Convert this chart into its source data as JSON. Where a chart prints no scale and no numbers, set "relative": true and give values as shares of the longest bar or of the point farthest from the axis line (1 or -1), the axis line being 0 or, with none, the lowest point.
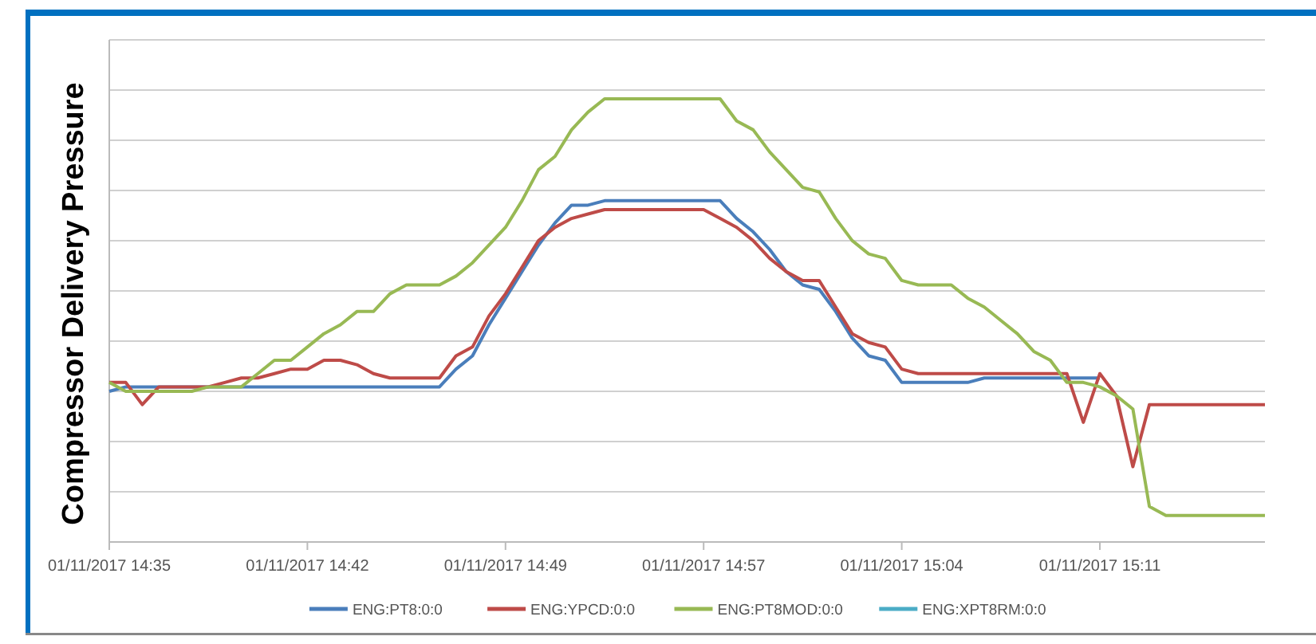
{
  "chart_data": {
    "type": "line",
    "ylabel": "Compressor Delivery Pressure",
    "relative": true,
    "grid": "y",
    "legend": "bottom",
    "categories": [
      "01/11/2017 14:35",
      null,
      null,
      null,
      null,
      null,
      null,
      null,
      null,
      null,
      null,
      null,
      "01/11/2017 14:42",
      null,
      null,
      null,
      null,
      null,
      null,
      null,
      null,
      null,
      null,
      null,
      "01/11/2017 14:49",
      null,
      null,
      null,
      null,
      null,
      null,
      null,
      null,
      null,
      null,
      null,
      "01/11/2017 14:57",
      null,
      null,
      null,
      null,
      null,
      null,
      null,
      null,
      null,
      null,
      null,
      "01/11/2017 15:04",
      null,
      null,
      null,
      null,
      null,
      null,
      null,
      null,
      null,
      null,
      null,
      "01/11/2017 15:11",
      null,
      null,
      null,
      null,
      null,
      null,
      null,
      null,
      null,
      null
    ],
    "series": [
      {
        "name": "ENG:PT8:0:0",
        "color": "#4a7ebb",
        "values": [
          0.34,
          0.35,
          0.35,
          0.35,
          0.35,
          0.35,
          0.35,
          0.35,
          0.35,
          0.35,
          0.35,
          0.35,
          0.35,
          0.35,
          0.35,
          0.35,
          0.35,
          0.35,
          0.35,
          0.35,
          0.35,
          0.39,
          0.42,
          0.49,
          0.55,
          0.61,
          0.67,
          0.72,
          0.76,
          0.76,
          0.77,
          0.77,
          0.77,
          0.77,
          0.77,
          0.77,
          0.77,
          0.77,
          0.73,
          0.7,
          0.66,
          0.61,
          0.58,
          0.57,
          0.52,
          0.46,
          0.42,
          0.41,
          0.36,
          0.36,
          0.36,
          0.36,
          0.36,
          0.37,
          0.37,
          0.37,
          0.37,
          0.37,
          0.37,
          0.37,
          0.37,
          null,
          null,
          null,
          null,
          null,
          null,
          null,
          null,
          null,
          null
        ]
      },
      {
        "name": "ENG:YPCD:0:0",
        "color": "#be4b48",
        "values": [
          0.36,
          0.36,
          0.31,
          0.35,
          0.35,
          0.35,
          0.35,
          0.36,
          0.37,
          0.37,
          0.38,
          0.39,
          0.39,
          0.41,
          0.41,
          0.4,
          0.38,
          0.37,
          0.37,
          0.37,
          0.37,
          0.42,
          0.44,
          0.51,
          0.56,
          0.62,
          0.68,
          0.71,
          0.73,
          0.74,
          0.75,
          0.75,
          0.75,
          0.75,
          0.75,
          0.75,
          0.75,
          0.73,
          0.71,
          0.68,
          0.64,
          0.61,
          0.59,
          0.59,
          0.53,
          0.47,
          0.45,
          0.44,
          0.39,
          0.38,
          0.38,
          0.38,
          0.38,
          0.38,
          0.38,
          0.38,
          0.38,
          0.38,
          0.38,
          0.27,
          0.38,
          0.33,
          0.17,
          0.31,
          0.31,
          0.31,
          0.31,
          0.31,
          0.31,
          0.31,
          0.31
        ]
      },
      {
        "name": "ENG:PT8MOD:0:0",
        "color": "#98b954",
        "values": [
          0.36,
          0.34,
          0.34,
          0.34,
          0.34,
          0.34,
          0.35,
          0.35,
          0.35,
          0.38,
          0.41,
          0.41,
          0.44,
          0.47,
          0.49,
          0.52,
          0.52,
          0.56,
          0.58,
          0.58,
          0.58,
          0.6,
          0.63,
          0.67,
          0.71,
          0.77,
          0.84,
          0.87,
          0.93,
          0.97,
          1,
          1,
          1,
          1,
          1,
          1,
          1,
          1,
          0.95,
          0.93,
          0.88,
          0.84,
          0.8,
          0.79,
          0.73,
          0.68,
          0.65,
          0.64,
          0.59,
          0.58,
          0.58,
          0.58,
          0.55,
          0.53,
          0.5,
          0.47,
          0.43,
          0.41,
          0.36,
          0.36,
          0.35,
          0.33,
          0.3,
          0.08,
          0.06,
          0.06,
          0.06,
          0.06,
          0.06,
          0.06,
          0.06
        ]
      },
      {
        "name": "ENG:XPT8RM:0:0",
        "color": "#4bacc6",
        "values": [
          null,
          null,
          null,
          null,
          null,
          null,
          null,
          null,
          null,
          null,
          null,
          null,
          null,
          null,
          null,
          null,
          null,
          null,
          null,
          null,
          null,
          null,
          null,
          null,
          null,
          null,
          null,
          null,
          null,
          null,
          null,
          null,
          null,
          null,
          null,
          null,
          null,
          null,
          null,
          null,
          null,
          null,
          null,
          null,
          null,
          null,
          null,
          null,
          null,
          null,
          null,
          null,
          null,
          null,
          null,
          null,
          null,
          null,
          null,
          null,
          null,
          null,
          null,
          null,
          null,
          null,
          null,
          null,
          null,
          null,
          null
        ]
      }
    ]
  }
}
